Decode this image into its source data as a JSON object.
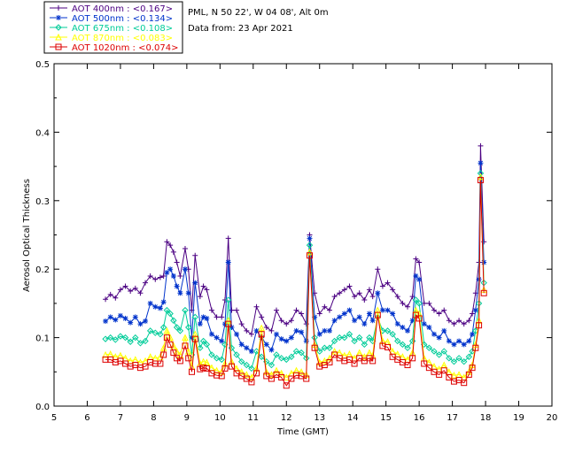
{
  "header": {
    "site_line": "PML, N 50 22', W 04 08', Alt 0m",
    "date_line": "Data from: 23 Apr 2021"
  },
  "chart_data": {
    "type": "line",
    "xlabel": "Time (GMT)",
    "ylabel": "Aerosol Optical Thickness",
    "xlim": [
      5,
      20
    ],
    "ylim": [
      0.0,
      0.5
    ],
    "xticks": [
      "5",
      "6",
      "7",
      "8",
      "9",
      "10",
      "11",
      "12",
      "13",
      "14",
      "15",
      "16",
      "17",
      "18",
      "19",
      "20"
    ],
    "yticks": [
      "0.0",
      "0.1",
      "0.2",
      "0.3",
      "0.4",
      "0.5"
    ],
    "legend_position": "top-left, outside plot",
    "series": [
      {
        "name": "AOT  400nm : <0.167>",
        "color": "#4b0082",
        "marker": "plus",
        "x": [
          6.55,
          6.7,
          6.85,
          7.0,
          7.15,
          7.3,
          7.45,
          7.6,
          7.75,
          7.9,
          8.05,
          8.2,
          8.3,
          8.4,
          8.5,
          8.6,
          8.7,
          8.8,
          8.95,
          9.05,
          9.15,
          9.25,
          9.4,
          9.5,
          9.6,
          9.75,
          9.9,
          10.05,
          10.15,
          10.25,
          10.35,
          10.5,
          10.65,
          10.8,
          10.95,
          11.1,
          11.25,
          11.4,
          11.55,
          11.7,
          11.85,
          12.0,
          12.15,
          12.3,
          12.45,
          12.6,
          12.7,
          12.85,
          13.0,
          13.15,
          13.3,
          13.45,
          13.6,
          13.75,
          13.9,
          14.05,
          14.2,
          14.35,
          14.5,
          14.6,
          14.75,
          14.9,
          15.05,
          15.2,
          15.35,
          15.5,
          15.65,
          15.8,
          15.9,
          16.0,
          16.15,
          16.3,
          16.45,
          16.6,
          16.75,
          16.9,
          17.05,
          17.2,
          17.35,
          17.5,
          17.6,
          17.7,
          17.8,
          17.85,
          17.95
        ],
        "y": [
          0.156,
          0.163,
          0.158,
          0.17,
          0.175,
          0.168,
          0.172,
          0.165,
          0.18,
          0.19,
          0.185,
          0.188,
          0.19,
          0.24,
          0.235,
          0.225,
          0.21,
          0.19,
          0.23,
          0.2,
          0.14,
          0.22,
          0.16,
          0.175,
          0.17,
          0.14,
          0.13,
          0.13,
          0.155,
          0.245,
          0.14,
          0.14,
          0.12,
          0.11,
          0.105,
          0.145,
          0.13,
          0.115,
          0.11,
          0.14,
          0.125,
          0.12,
          0.125,
          0.14,
          0.135,
          0.12,
          0.25,
          0.165,
          0.135,
          0.145,
          0.14,
          0.16,
          0.165,
          0.17,
          0.175,
          0.16,
          0.165,
          0.155,
          0.17,
          0.16,
          0.2,
          0.175,
          0.18,
          0.17,
          0.16,
          0.15,
          0.145,
          0.16,
          0.215,
          0.21,
          0.15,
          0.15,
          0.14,
          0.135,
          0.14,
          0.125,
          0.12,
          0.125,
          0.12,
          0.125,
          0.135,
          0.165,
          0.21,
          0.38,
          0.24
        ]
      },
      {
        "name": "AOT  500nm : <0.134>",
        "color": "#0033cc",
        "marker": "star",
        "x": [
          6.55,
          6.7,
          6.85,
          7.0,
          7.15,
          7.3,
          7.45,
          7.6,
          7.75,
          7.9,
          8.05,
          8.2,
          8.3,
          8.4,
          8.5,
          8.6,
          8.7,
          8.8,
          8.95,
          9.05,
          9.15,
          9.25,
          9.4,
          9.5,
          9.6,
          9.75,
          9.9,
          10.05,
          10.15,
          10.25,
          10.35,
          10.5,
          10.65,
          10.8,
          10.95,
          11.1,
          11.25,
          11.4,
          11.55,
          11.7,
          11.85,
          12.0,
          12.15,
          12.3,
          12.45,
          12.6,
          12.7,
          12.85,
          13.0,
          13.15,
          13.3,
          13.45,
          13.6,
          13.75,
          13.9,
          14.05,
          14.2,
          14.35,
          14.5,
          14.6,
          14.75,
          14.9,
          15.05,
          15.2,
          15.35,
          15.5,
          15.65,
          15.8,
          15.9,
          16.0,
          16.15,
          16.3,
          16.45,
          16.6,
          16.75,
          16.9,
          17.05,
          17.2,
          17.35,
          17.5,
          17.6,
          17.7,
          17.8,
          17.85,
          17.95
        ],
        "y": [
          0.124,
          0.13,
          0.126,
          0.132,
          0.128,
          0.122,
          0.13,
          0.12,
          0.124,
          0.15,
          0.145,
          0.143,
          0.152,
          0.195,
          0.2,
          0.19,
          0.175,
          0.165,
          0.2,
          0.165,
          0.1,
          0.18,
          0.12,
          0.13,
          0.128,
          0.105,
          0.1,
          0.095,
          0.12,
          0.21,
          0.115,
          0.105,
          0.09,
          0.085,
          0.08,
          0.11,
          0.1,
          0.09,
          0.082,
          0.105,
          0.098,
          0.095,
          0.1,
          0.11,
          0.108,
          0.095,
          0.245,
          0.13,
          0.105,
          0.11,
          0.11,
          0.125,
          0.13,
          0.135,
          0.14,
          0.125,
          0.13,
          0.12,
          0.135,
          0.125,
          0.165,
          0.14,
          0.14,
          0.135,
          0.12,
          0.115,
          0.11,
          0.125,
          0.19,
          0.185,
          0.12,
          0.115,
          0.105,
          0.1,
          0.11,
          0.095,
          0.09,
          0.095,
          0.09,
          0.095,
          0.105,
          0.14,
          0.185,
          0.355,
          0.21
        ]
      },
      {
        "name": "AOT  675nm : <0.108>",
        "color": "#00cc99",
        "marker": "diamond",
        "x": [
          6.55,
          6.7,
          6.85,
          7.0,
          7.15,
          7.3,
          7.45,
          7.6,
          7.75,
          7.9,
          8.05,
          8.2,
          8.3,
          8.4,
          8.5,
          8.6,
          8.7,
          8.8,
          8.95,
          9.05,
          9.15,
          9.25,
          9.4,
          9.5,
          9.6,
          9.75,
          9.9,
          10.05,
          10.15,
          10.25,
          10.35,
          10.5,
          10.65,
          10.8,
          10.95,
          11.1,
          11.25,
          11.4,
          11.55,
          11.7,
          11.85,
          12.0,
          12.15,
          12.3,
          12.45,
          12.6,
          12.7,
          12.85,
          13.0,
          13.15,
          13.3,
          13.45,
          13.6,
          13.75,
          13.9,
          14.05,
          14.2,
          14.35,
          14.5,
          14.6,
          14.75,
          14.9,
          15.05,
          15.2,
          15.35,
          15.5,
          15.65,
          15.8,
          15.9,
          16.0,
          16.15,
          16.3,
          16.45,
          16.6,
          16.75,
          16.9,
          17.05,
          17.2,
          17.35,
          17.5,
          17.6,
          17.7,
          17.8,
          17.85,
          17.95
        ],
        "y": [
          0.098,
          0.1,
          0.097,
          0.102,
          0.1,
          0.094,
          0.1,
          0.092,
          0.095,
          0.11,
          0.107,
          0.105,
          0.115,
          0.14,
          0.135,
          0.125,
          0.115,
          0.11,
          0.14,
          0.115,
          0.075,
          0.13,
          0.085,
          0.095,
          0.09,
          0.075,
          0.07,
          0.068,
          0.09,
          0.155,
          0.085,
          0.075,
          0.065,
          0.06,
          0.055,
          0.08,
          0.072,
          0.065,
          0.06,
          0.075,
          0.07,
          0.068,
          0.072,
          0.08,
          0.078,
          0.07,
          0.235,
          0.1,
          0.08,
          0.085,
          0.085,
          0.095,
          0.1,
          0.1,
          0.105,
          0.095,
          0.1,
          0.09,
          0.1,
          0.095,
          0.13,
          0.11,
          0.11,
          0.105,
          0.095,
          0.09,
          0.085,
          0.095,
          0.155,
          0.15,
          0.09,
          0.085,
          0.08,
          0.075,
          0.08,
          0.07,
          0.065,
          0.07,
          0.065,
          0.072,
          0.08,
          0.11,
          0.15,
          0.34,
          0.18
        ]
      },
      {
        "name": "AOT  870nm : <0.083>",
        "color": "#ffff00",
        "marker": "triangle",
        "x": [
          6.55,
          6.7,
          6.85,
          7.0,
          7.15,
          7.3,
          7.45,
          7.6,
          7.75,
          7.9,
          8.05,
          8.2,
          8.3,
          8.4,
          8.5,
          8.6,
          8.7,
          8.8,
          8.95,
          9.05,
          9.15,
          9.25,
          9.4,
          9.5,
          9.6,
          9.75,
          9.9,
          10.05,
          10.15,
          10.25,
          10.35,
          10.5,
          10.65,
          10.8,
          10.95,
          11.1,
          11.25,
          11.4,
          11.55,
          11.7,
          11.85,
          12.0,
          12.15,
          12.3,
          12.45,
          12.6,
          12.7,
          12.85,
          13.0,
          13.15,
          13.3,
          13.45,
          13.6,
          13.75,
          13.9,
          14.05,
          14.2,
          14.35,
          14.5,
          14.6,
          14.75,
          14.9,
          15.05,
          15.2,
          15.35,
          15.5,
          15.65,
          15.8,
          15.9,
          16.0,
          16.15,
          16.3,
          16.45,
          16.6,
          16.75,
          16.9,
          17.05,
          17.2,
          17.35,
          17.5,
          17.6,
          17.7,
          17.8,
          17.85,
          17.95
        ],
        "y": [
          0.075,
          0.076,
          0.072,
          0.074,
          0.07,
          0.066,
          0.068,
          0.064,
          0.066,
          0.072,
          0.07,
          0.072,
          0.085,
          0.11,
          0.1,
          0.088,
          0.08,
          0.075,
          0.1,
          0.08,
          0.058,
          0.105,
          0.062,
          0.065,
          0.064,
          0.056,
          0.052,
          0.05,
          0.062,
          0.125,
          0.065,
          0.055,
          0.05,
          0.046,
          0.042,
          0.055,
          0.114,
          0.05,
          0.046,
          0.052,
          0.048,
          0.042,
          0.048,
          0.052,
          0.05,
          0.046,
          0.225,
          0.09,
          0.064,
          0.066,
          0.07,
          0.08,
          0.078,
          0.074,
          0.076,
          0.07,
          0.078,
          0.072,
          0.078,
          0.074,
          0.14,
          0.095,
          0.094,
          0.08,
          0.076,
          0.072,
          0.068,
          0.078,
          0.14,
          0.135,
          0.07,
          0.064,
          0.058,
          0.054,
          0.06,
          0.05,
          0.045,
          0.046,
          0.042,
          0.05,
          0.06,
          0.09,
          0.125,
          0.335,
          0.17
        ]
      },
      {
        "name": "AOT 1020nm : <0.074>",
        "color": "#dd0000",
        "marker": "square",
        "x": [
          6.55,
          6.7,
          6.85,
          7.0,
          7.15,
          7.3,
          7.45,
          7.6,
          7.75,
          7.9,
          8.05,
          8.2,
          8.3,
          8.4,
          8.5,
          8.6,
          8.7,
          8.8,
          8.95,
          9.05,
          9.15,
          9.25,
          9.4,
          9.5,
          9.6,
          9.75,
          9.9,
          10.05,
          10.15,
          10.25,
          10.35,
          10.5,
          10.65,
          10.8,
          10.95,
          11.1,
          11.25,
          11.4,
          11.55,
          11.7,
          11.85,
          12.0,
          12.15,
          12.3,
          12.45,
          12.6,
          12.7,
          12.85,
          13.0,
          13.15,
          13.3,
          13.45,
          13.6,
          13.75,
          13.9,
          14.05,
          14.2,
          14.35,
          14.5,
          14.6,
          14.75,
          14.9,
          15.05,
          15.2,
          15.35,
          15.5,
          15.65,
          15.8,
          15.9,
          16.0,
          16.15,
          16.3,
          16.45,
          16.6,
          16.75,
          16.9,
          17.05,
          17.2,
          17.35,
          17.5,
          17.6,
          17.7,
          17.8,
          17.85,
          17.95
        ],
        "y": [
          0.068,
          0.068,
          0.064,
          0.066,
          0.062,
          0.058,
          0.06,
          0.056,
          0.058,
          0.064,
          0.062,
          0.062,
          0.075,
          0.1,
          0.09,
          0.078,
          0.07,
          0.066,
          0.088,
          0.07,
          0.05,
          0.098,
          0.054,
          0.056,
          0.055,
          0.048,
          0.045,
          0.044,
          0.055,
          0.12,
          0.058,
          0.048,
          0.044,
          0.04,
          0.035,
          0.048,
          0.105,
          0.044,
          0.04,
          0.046,
          0.042,
          0.03,
          0.04,
          0.045,
          0.044,
          0.04,
          0.22,
          0.085,
          0.058,
          0.06,
          0.064,
          0.075,
          0.07,
          0.066,
          0.068,
          0.062,
          0.07,
          0.066,
          0.07,
          0.066,
          0.133,
          0.088,
          0.086,
          0.072,
          0.068,
          0.064,
          0.06,
          0.07,
          0.133,
          0.128,
          0.062,
          0.056,
          0.05,
          0.046,
          0.052,
          0.042,
          0.036,
          0.038,
          0.034,
          0.046,
          0.056,
          0.085,
          0.118,
          0.33,
          0.165
        ]
      }
    ]
  }
}
